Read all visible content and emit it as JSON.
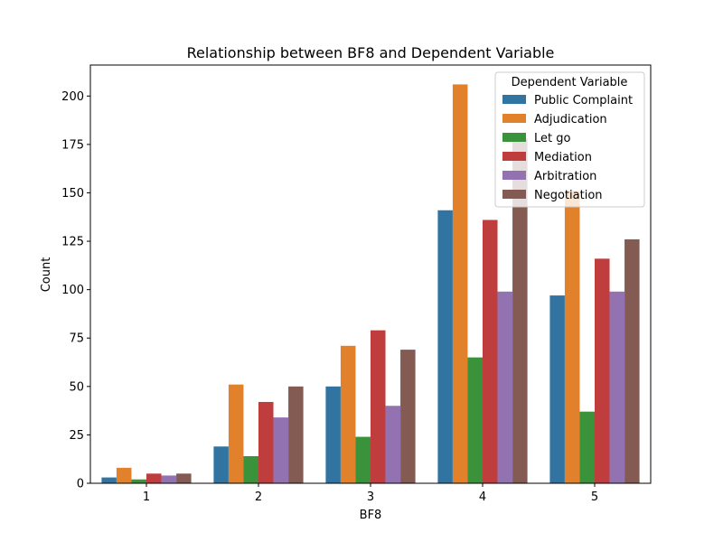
{
  "chart_data": {
    "type": "bar",
    "title": "Relationship between BF8 and Dependent Variable",
    "xlabel": "BF8",
    "ylabel": "Count",
    "categories": [
      "1",
      "2",
      "3",
      "4",
      "5"
    ],
    "ylim": [
      0,
      216
    ],
    "yticks": [
      0,
      25,
      50,
      75,
      100,
      125,
      150,
      175,
      200
    ],
    "grid": false,
    "legend": {
      "title": "Dependent Variable",
      "placement": "top-right"
    },
    "series": [
      {
        "name": "Public Complaint",
        "color": "#3274a1",
        "values": [
          3,
          19,
          50,
          141,
          97
        ]
      },
      {
        "name": "Adjudication",
        "color": "#e1812c",
        "values": [
          8,
          51,
          71,
          206,
          151
        ]
      },
      {
        "name": "Let go",
        "color": "#3a923a",
        "values": [
          2,
          14,
          24,
          65,
          37
        ]
      },
      {
        "name": "Mediation",
        "color": "#c03d3e",
        "values": [
          5,
          42,
          79,
          136,
          116
        ]
      },
      {
        "name": "Arbitration",
        "color": "#9372b2",
        "values": [
          4,
          34,
          40,
          99,
          99
        ]
      },
      {
        "name": "Negotiation",
        "color": "#845b53",
        "values": [
          5,
          50,
          69,
          178,
          126
        ]
      }
    ]
  }
}
